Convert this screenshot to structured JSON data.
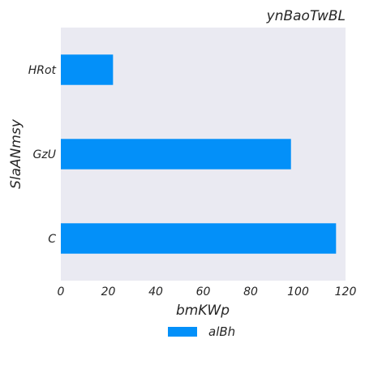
{
  "chart_data": {
    "type": "bar",
    "orientation": "horizontal",
    "title": "ynBaoTwBL",
    "xlabel": "bmKWp",
    "ylabel": "SlaANmsy",
    "categories": [
      "HRot",
      "GzU",
      "C"
    ],
    "series": [
      {
        "name": "alBh",
        "values": [
          22,
          97,
          116
        ]
      }
    ],
    "xlim": [
      0,
      120
    ],
    "xticks": [
      "0",
      "20",
      "40",
      "60",
      "80",
      "100",
      "120"
    ],
    "grid": false,
    "legend_position": "bottom-center",
    "colors": {
      "bar": "#0390f9",
      "plot_background": "#eaeaf2"
    }
  }
}
